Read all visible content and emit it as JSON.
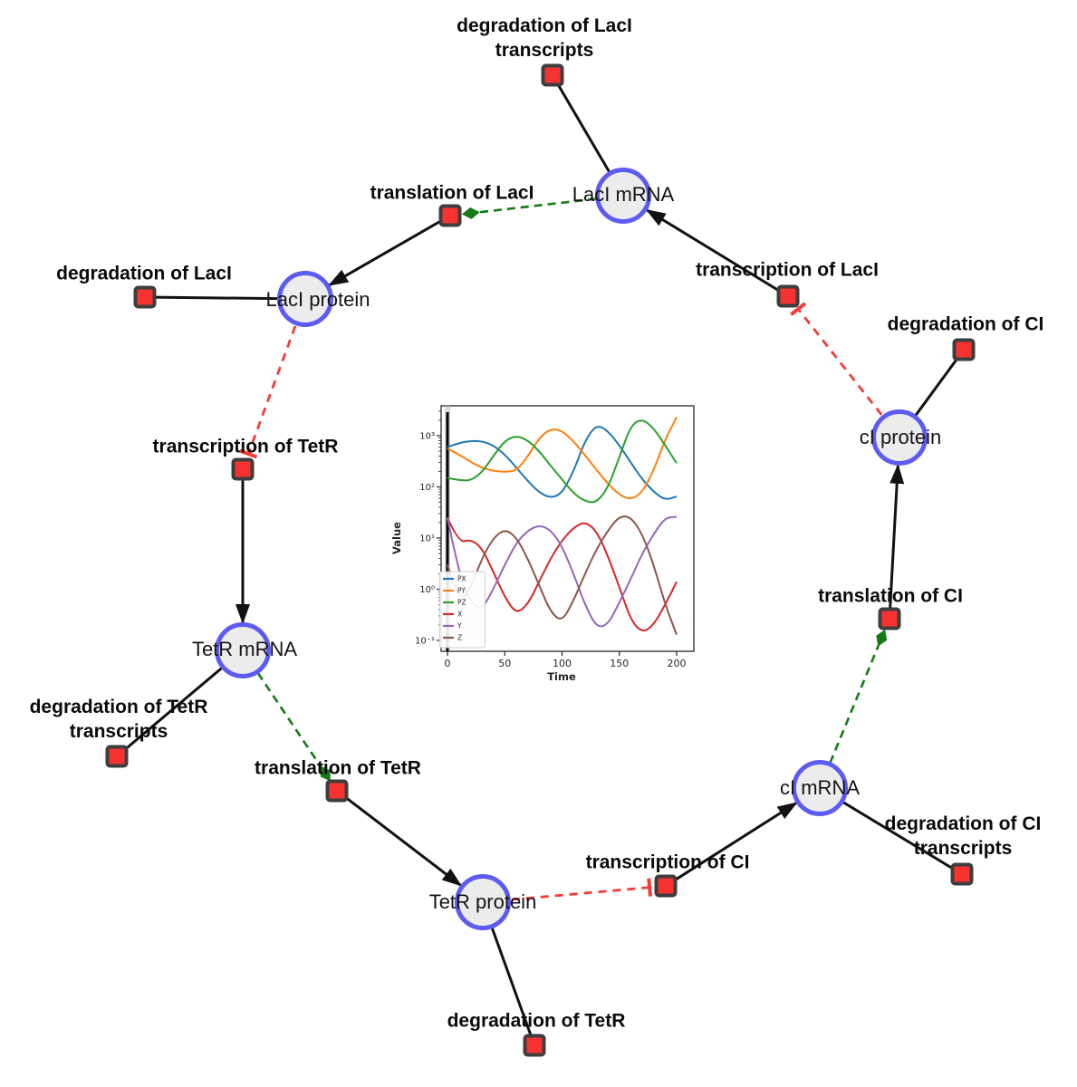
{
  "diagram": {
    "species": {
      "laci_mrna": {
        "label": "LacI mRNA"
      },
      "laci_protein": {
        "label": "LacI protein"
      },
      "ci_protein": {
        "label": "cI protein"
      },
      "tetr_mrna": {
        "label": "TetR mRNA"
      },
      "tetr_protein": {
        "label": "TetR protein"
      },
      "ci_mrna": {
        "label": "cI mRNA"
      }
    },
    "reactions": {
      "degradation_laci_transcripts": {
        "label": "degradation of LacI",
        "label2": "transcripts"
      },
      "translation_laci": {
        "label": "translation of LacI"
      },
      "degradation_laci": {
        "label": "degradation of LacI"
      },
      "transcription_laci": {
        "label": "transcription of LacI"
      },
      "degradation_ci": {
        "label": "degradation of CI"
      },
      "transcription_tetr": {
        "label": "transcription of TetR"
      },
      "degradation_tetr_transcripts": {
        "label": "degradation of TetR",
        "label2": "transcripts"
      },
      "translation_tetr": {
        "label": "translation of TetR"
      },
      "degradation_tetr": {
        "label": "degradation of TetR"
      },
      "transcription_ci": {
        "label": "transcription of CI"
      },
      "degradation_ci_transcripts": {
        "label": "degradation of CI",
        "label2": "transcripts"
      },
      "translation_ci": {
        "label": "translation of CI"
      }
    },
    "colors": {
      "species_fill": "#ececec",
      "species_border": "#5c5cf2",
      "reaction_fill": "#f8322f",
      "reaction_border": "#3d3d3d",
      "edge_black": "#111111",
      "catalysis_green": "#147a14",
      "inhibition_red": "#f43b36"
    }
  },
  "chart_data": {
    "type": "line",
    "title": "",
    "xlabel": "Time",
    "ylabel": "Value",
    "xlim": [
      0,
      200
    ],
    "yscale": "log",
    "ylim": [
      0.07,
      3800
    ],
    "grid": false,
    "legend_position": "lower left",
    "annotation": "vertical black line at t=0",
    "xtick_labels": [
      "0",
      "50",
      "100",
      "150",
      "200"
    ],
    "ytick_labels": [
      "10³",
      "10²",
      "10¹",
      "10⁰",
      "10⁻¹"
    ],
    "series": [
      {
        "name": "PX",
        "color": "#1f77b4",
        "points": [
          [
            0,
            600
          ],
          [
            10,
            720
          ],
          [
            20,
            790
          ],
          [
            30,
            780
          ],
          [
            40,
            650
          ],
          [
            50,
            430
          ],
          [
            60,
            240
          ],
          [
            70,
            130
          ],
          [
            80,
            78
          ],
          [
            90,
            60
          ],
          [
            100,
            75
          ],
          [
            110,
            200
          ],
          [
            120,
            800
          ],
          [
            130,
            1650
          ],
          [
            140,
            1250
          ],
          [
            150,
            650
          ],
          [
            160,
            300
          ],
          [
            170,
            140
          ],
          [
            180,
            80
          ],
          [
            190,
            55
          ],
          [
            200,
            65
          ]
        ]
      },
      {
        "name": "PY",
        "color": "#ff7f0e",
        "points": [
          [
            0,
            560
          ],
          [
            10,
            430
          ],
          [
            20,
            310
          ],
          [
            30,
            235
          ],
          [
            40,
            205
          ],
          [
            50,
            196
          ],
          [
            60,
            205
          ],
          [
            70,
            390
          ],
          [
            80,
            900
          ],
          [
            90,
            1380
          ],
          [
            100,
            1250
          ],
          [
            110,
            780
          ],
          [
            120,
            420
          ],
          [
            130,
            215
          ],
          [
            140,
            115
          ],
          [
            150,
            70
          ],
          [
            160,
            56
          ],
          [
            170,
            78
          ],
          [
            180,
            210
          ],
          [
            190,
            850
          ],
          [
            200,
            2300
          ]
        ]
      },
      {
        "name": "PZ",
        "color": "#2ca02c",
        "points": [
          [
            0,
            150
          ],
          [
            10,
            135
          ],
          [
            20,
            132
          ],
          [
            30,
            190
          ],
          [
            40,
            400
          ],
          [
            50,
            800
          ],
          [
            60,
            1000
          ],
          [
            70,
            820
          ],
          [
            80,
            500
          ],
          [
            90,
            260
          ],
          [
            100,
            140
          ],
          [
            110,
            75
          ],
          [
            120,
            52
          ],
          [
            130,
            49
          ],
          [
            140,
            95
          ],
          [
            150,
            380
          ],
          [
            160,
            1600
          ],
          [
            170,
            2150
          ],
          [
            180,
            1400
          ],
          [
            190,
            650
          ],
          [
            200,
            290
          ]
        ]
      },
      {
        "name": "X",
        "color": "#d62728",
        "points": [
          [
            0,
            25
          ],
          [
            10,
            8
          ],
          [
            20,
            9.5
          ],
          [
            30,
            6.5
          ],
          [
            40,
            2.2
          ],
          [
            50,
            0.7
          ],
          [
            60,
            0.33
          ],
          [
            70,
            0.5
          ],
          [
            80,
            1.4
          ],
          [
            90,
            4
          ],
          [
            100,
            9
          ],
          [
            110,
            16
          ],
          [
            120,
            21
          ],
          [
            130,
            14
          ],
          [
            140,
            4.5
          ],
          [
            150,
            1.1
          ],
          [
            160,
            0.25
          ],
          [
            170,
            0.14
          ],
          [
            180,
            0.2
          ],
          [
            190,
            0.5
          ],
          [
            200,
            1.4
          ]
        ]
      },
      {
        "name": "Y",
        "color": "#9467bd",
        "points": [
          [
            0,
            25
          ],
          [
            10,
            2
          ],
          [
            20,
            0.55
          ],
          [
            30,
            0.4
          ],
          [
            40,
            1
          ],
          [
            50,
            3
          ],
          [
            60,
            8
          ],
          [
            70,
            14
          ],
          [
            80,
            18
          ],
          [
            90,
            14.5
          ],
          [
            100,
            7
          ],
          [
            110,
            2
          ],
          [
            120,
            0.5
          ],
          [
            130,
            0.18
          ],
          [
            140,
            0.2
          ],
          [
            150,
            0.55
          ],
          [
            160,
            1.6
          ],
          [
            170,
            5
          ],
          [
            180,
            12
          ],
          [
            190,
            25
          ],
          [
            200,
            26
          ]
        ]
      },
      {
        "name": "Z",
        "color": "#8c564b",
        "points": [
          [
            0,
            3
          ],
          [
            10,
            0.55
          ],
          [
            20,
            1
          ],
          [
            30,
            4
          ],
          [
            40,
            10
          ],
          [
            50,
            15
          ],
          [
            60,
            10.5
          ],
          [
            70,
            4
          ],
          [
            80,
            1.2
          ],
          [
            90,
            0.36
          ],
          [
            100,
            0.23
          ],
          [
            110,
            0.6
          ],
          [
            120,
            2
          ],
          [
            130,
            6
          ],
          [
            140,
            14
          ],
          [
            150,
            27
          ],
          [
            160,
            26
          ],
          [
            170,
            12
          ],
          [
            180,
            3
          ],
          [
            190,
            0.5
          ],
          [
            200,
            0.13
          ]
        ]
      }
    ]
  }
}
